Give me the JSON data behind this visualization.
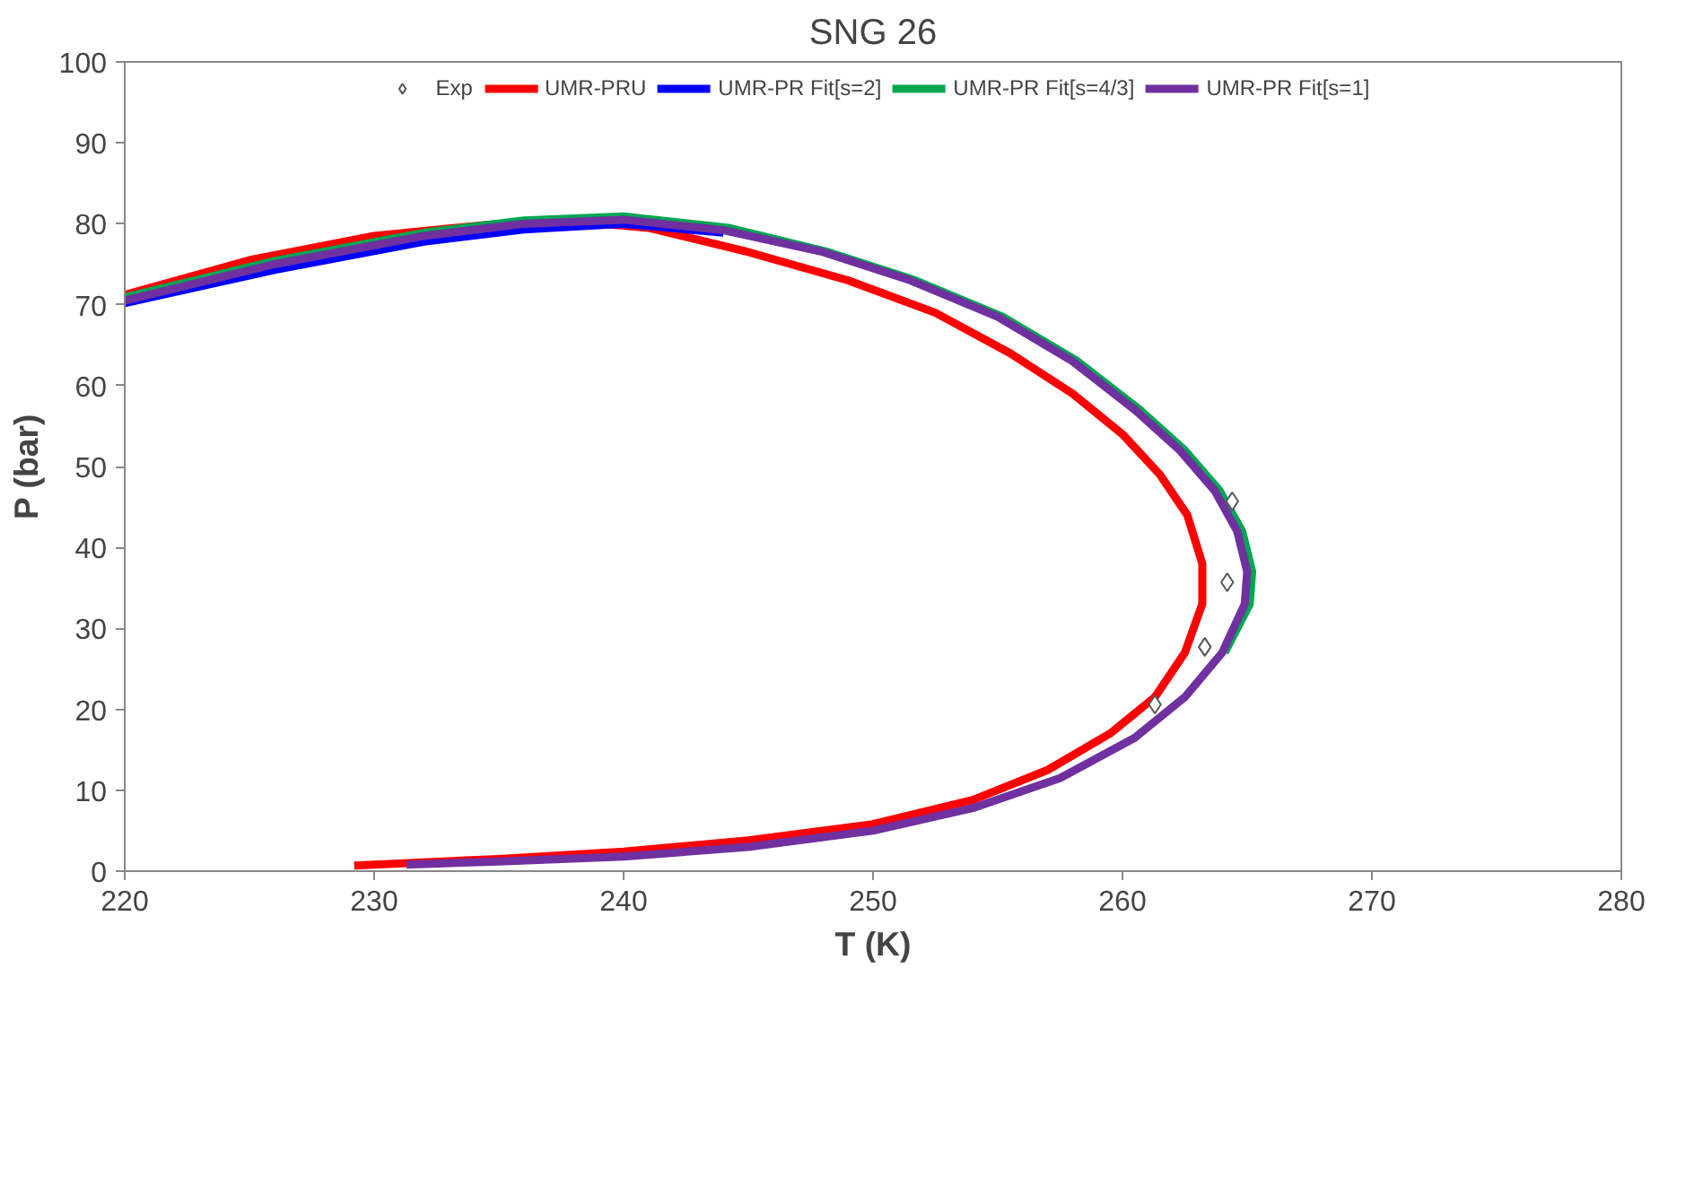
{
  "chart_data": {
    "type": "line",
    "title": "SNG 26",
    "xlabel": "T (K)",
    "ylabel": "P (bar)",
    "xlim": [
      220,
      280
    ],
    "ylim": [
      0,
      100
    ],
    "xticks": [
      220,
      230,
      240,
      250,
      260,
      270,
      280
    ],
    "yticks": [
      0,
      10,
      20,
      30,
      40,
      50,
      60,
      70,
      80,
      90,
      100
    ],
    "grid": false,
    "legend": "top",
    "series": [
      {
        "name": "Exp",
        "type": "scatter",
        "marker": "diamond",
        "color": "#ffffff",
        "x": [
          264.4,
          264.2,
          263.3,
          261.3
        ],
        "values": [
          45.7,
          35.7,
          27.7,
          20.6
        ]
      },
      {
        "name": "UMR-PRU",
        "color": "#ff0000",
        "x": [
          229.2,
          235,
          240,
          245,
          250,
          254,
          257,
          259.5,
          261.3,
          262.5,
          263.2,
          263.2,
          262.6,
          261.5,
          260,
          258,
          255.5,
          252.5,
          249,
          245,
          241,
          238,
          235,
          230,
          225,
          220
        ],
        "values": [
          0.7,
          1.5,
          2.4,
          3.8,
          5.8,
          8.8,
          12.5,
          17,
          21.5,
          27,
          33,
          38,
          44,
          49,
          54,
          59,
          64,
          69,
          73,
          76.5,
          79.5,
          80.3,
          80,
          78.5,
          75.5,
          71.2
        ]
      },
      {
        "name": "UMR-PR Fit[s=2]",
        "color": "#0000ff",
        "x": [
          244,
          240,
          236,
          232,
          226,
          220
        ],
        "values": [
          78.9,
          80.0,
          79.3,
          77.8,
          74.3,
          70.2
        ]
      },
      {
        "name": "UMR-PR Fit[s=4/3]",
        "color": "#00a651",
        "x": [
          264.1,
          265.1,
          265.2,
          264.8,
          263.9,
          262.5,
          260.7,
          258.2,
          255.2,
          251.7,
          248.2,
          244.2,
          240,
          236,
          232,
          226,
          220
        ],
        "values": [
          27,
          33,
          37,
          42,
          47,
          52,
          57,
          63,
          68.5,
          73,
          76.5,
          79.5,
          80.9,
          80.4,
          78.9,
          75.4,
          70.9
        ]
      },
      {
        "name": "UMR-PR Fit[s=1]",
        "color": "#7030a0",
        "x": [
          231.3,
          235,
          240,
          245,
          250,
          254,
          257.5,
          260.5,
          262.5,
          264,
          264.9,
          265,
          264.6,
          263.7,
          262.3,
          260.5,
          258,
          255,
          251.5,
          248,
          244,
          240,
          236,
          232,
          226,
          220
        ],
        "values": [
          0.8,
          1.2,
          1.8,
          3,
          5,
          7.8,
          11.5,
          16.5,
          21.5,
          27,
          33,
          37,
          42,
          47,
          52,
          57,
          63,
          68.5,
          73,
          76.5,
          79.2,
          80.5,
          80,
          78.5,
          75,
          70.5
        ]
      }
    ]
  }
}
